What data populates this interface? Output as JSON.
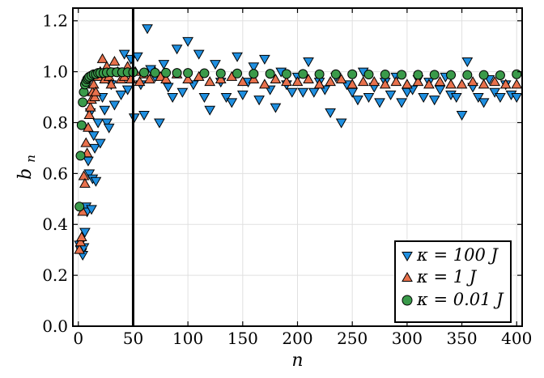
{
  "chart_data": {
    "type": "scatter",
    "xlabel": "n",
    "ylabel": "b_n",
    "xlabel_text": "n",
    "ylabel_main": "b",
    "ylabel_sub": "n",
    "xlim": [
      -5,
      405
    ],
    "ylim": [
      0.0,
      1.25
    ],
    "xticks": [
      0,
      50,
      100,
      150,
      200,
      250,
      300,
      350,
      400
    ],
    "xtick_labels": [
      "0",
      "50",
      "100",
      "150",
      "200",
      "250",
      "300",
      "350",
      "400"
    ],
    "yticks": [
      0.0,
      0.2,
      0.4,
      0.6,
      0.8,
      1.0,
      1.2
    ],
    "ytick_labels": [
      "0.0",
      "0.2",
      "0.4",
      "0.6",
      "0.8",
      "1.0",
      "1.2"
    ],
    "grid": true,
    "vertical_line_x": 50,
    "legend_position": "bottom-right",
    "colors": {
      "kappa_100": "#1f8fe0",
      "kappa_1": "#e8714c",
      "kappa_001": "#3a9a4a",
      "vline": "#000000",
      "grid": "#e0e0e0"
    },
    "series": [
      {
        "name": "κ = 100 J",
        "marker": "triangle-down",
        "x": [
          1,
          2,
          3,
          4,
          5,
          6,
          7,
          8,
          9,
          10,
          11,
          12,
          13,
          14,
          15,
          16,
          18,
          20,
          22,
          24,
          26,
          28,
          30,
          33,
          36,
          39,
          42,
          45,
          48,
          51,
          54,
          57,
          60,
          63,
          66,
          70,
          74,
          78,
          82,
          86,
          90,
          95,
          100,
          105,
          110,
          115,
          120,
          125,
          130,
          135,
          140,
          145,
          150,
          155,
          160,
          165,
          170,
          175,
          180,
          185,
          190,
          195,
          200,
          205,
          210,
          215,
          220,
          225,
          230,
          235,
          240,
          245,
          250,
          255,
          260,
          265,
          270,
          275,
          280,
          285,
          290,
          295,
          300,
          305,
          310,
          315,
          320,
          325,
          330,
          335,
          340,
          345,
          350,
          355,
          360,
          365,
          370,
          375,
          380,
          385,
          390,
          395,
          400
        ],
        "y": [
          0.32,
          0.3,
          0.29,
          0.28,
          0.31,
          0.37,
          0.47,
          0.45,
          0.65,
          0.6,
          0.84,
          0.46,
          0.58,
          0.75,
          0.7,
          0.57,
          0.8,
          0.72,
          0.9,
          0.85,
          0.8,
          0.78,
          0.95,
          0.87,
          1.0,
          0.91,
          1.07,
          0.93,
          1.05,
          0.82,
          1.06,
          0.95,
          0.83,
          1.17,
          1.01,
          0.98,
          0.8,
          1.03,
          0.94,
          0.9,
          1.09,
          0.92,
          1.12,
          0.95,
          1.07,
          0.9,
          0.85,
          1.03,
          0.96,
          0.9,
          0.88,
          1.06,
          0.91,
          0.96,
          1.02,
          0.89,
          1.05,
          0.93,
          0.86,
          1.0,
          0.95,
          0.92,
          0.98,
          0.92,
          1.04,
          0.92,
          0.96,
          0.93,
          0.84,
          0.98,
          0.8,
          0.95,
          0.92,
          0.89,
          1.0,
          0.9,
          0.94,
          0.88,
          0.96,
          0.91,
          0.98,
          0.88,
          0.92,
          0.93,
          0.97,
          0.9,
          0.96,
          0.89,
          0.93,
          0.98,
          0.91,
          0.9,
          0.83,
          1.04,
          0.94,
          0.9,
          0.88,
          0.97,
          0.92,
          0.9,
          0.95,
          0.91,
          0.9
        ]
      },
      {
        "name": "κ = 1 J",
        "marker": "triangle-up",
        "x": [
          1,
          2,
          3,
          4,
          5,
          6,
          7,
          8,
          9,
          10,
          11,
          12,
          13,
          14,
          15,
          16,
          18,
          20,
          22,
          24,
          26,
          28,
          30,
          33,
          36,
          39,
          42,
          45,
          48,
          52,
          56,
          60,
          65,
          70,
          75,
          80,
          90,
          100,
          110,
          120,
          130,
          140,
          150,
          160,
          170,
          180,
          190,
          200,
          210,
          220,
          230,
          240,
          250,
          260,
          270,
          280,
          290,
          300,
          310,
          320,
          330,
          340,
          350,
          360,
          370,
          380,
          390,
          400
        ],
        "y": [
          0.3,
          0.33,
          0.35,
          0.45,
          0.59,
          0.56,
          0.72,
          0.68,
          0.78,
          0.83,
          0.86,
          0.89,
          0.92,
          0.95,
          0.9,
          0.92,
          0.98,
          1.0,
          1.05,
          0.97,
          1.02,
          0.98,
          0.95,
          1.04,
          1.0,
          0.97,
          0.98,
          1.02,
          0.97,
          1.0,
          0.96,
          0.99,
          0.97,
          1.0,
          0.98,
          0.97,
          0.99,
          0.97,
          0.98,
          0.96,
          0.97,
          0.98,
          0.96,
          0.97,
          0.95,
          0.97,
          0.96,
          0.96,
          0.97,
          0.95,
          0.96,
          0.97,
          0.95,
          0.96,
          0.96,
          0.95,
          0.96,
          0.95,
          0.96,
          0.95,
          0.96,
          0.95,
          0.95,
          0.96,
          0.95,
          0.96,
          0.95,
          0.95
        ]
      },
      {
        "name": "κ = 0.01 J",
        "marker": "circle",
        "x": [
          1,
          2,
          3,
          4,
          5,
          6,
          7,
          8,
          9,
          10,
          12,
          14,
          16,
          18,
          20,
          23,
          26,
          30,
          35,
          40,
          45,
          50,
          60,
          70,
          80,
          90,
          100,
          115,
          130,
          145,
          160,
          175,
          190,
          205,
          220,
          235,
          250,
          265,
          280,
          295,
          310,
          325,
          340,
          355,
          370,
          385,
          400
        ],
        "y": [
          0.47,
          0.67,
          0.79,
          0.88,
          0.92,
          0.95,
          0.96,
          0.97,
          0.975,
          0.98,
          0.985,
          0.99,
          0.99,
          0.995,
          0.995,
          0.995,
          0.997,
          0.998,
          0.998,
          0.998,
          0.998,
          0.998,
          0.997,
          0.996,
          0.996,
          0.995,
          0.995,
          0.994,
          0.993,
          0.993,
          0.992,
          0.992,
          0.991,
          0.991,
          0.99,
          0.99,
          0.99,
          0.989,
          0.989,
          0.988,
          0.988,
          0.988,
          0.987,
          0.987,
          0.987,
          0.986,
          0.99
        ]
      }
    ],
    "legend": [
      {
        "label": "κ = 100 J"
      },
      {
        "label": "κ = 1 J"
      },
      {
        "label": "κ = 0.01 J"
      }
    ]
  }
}
